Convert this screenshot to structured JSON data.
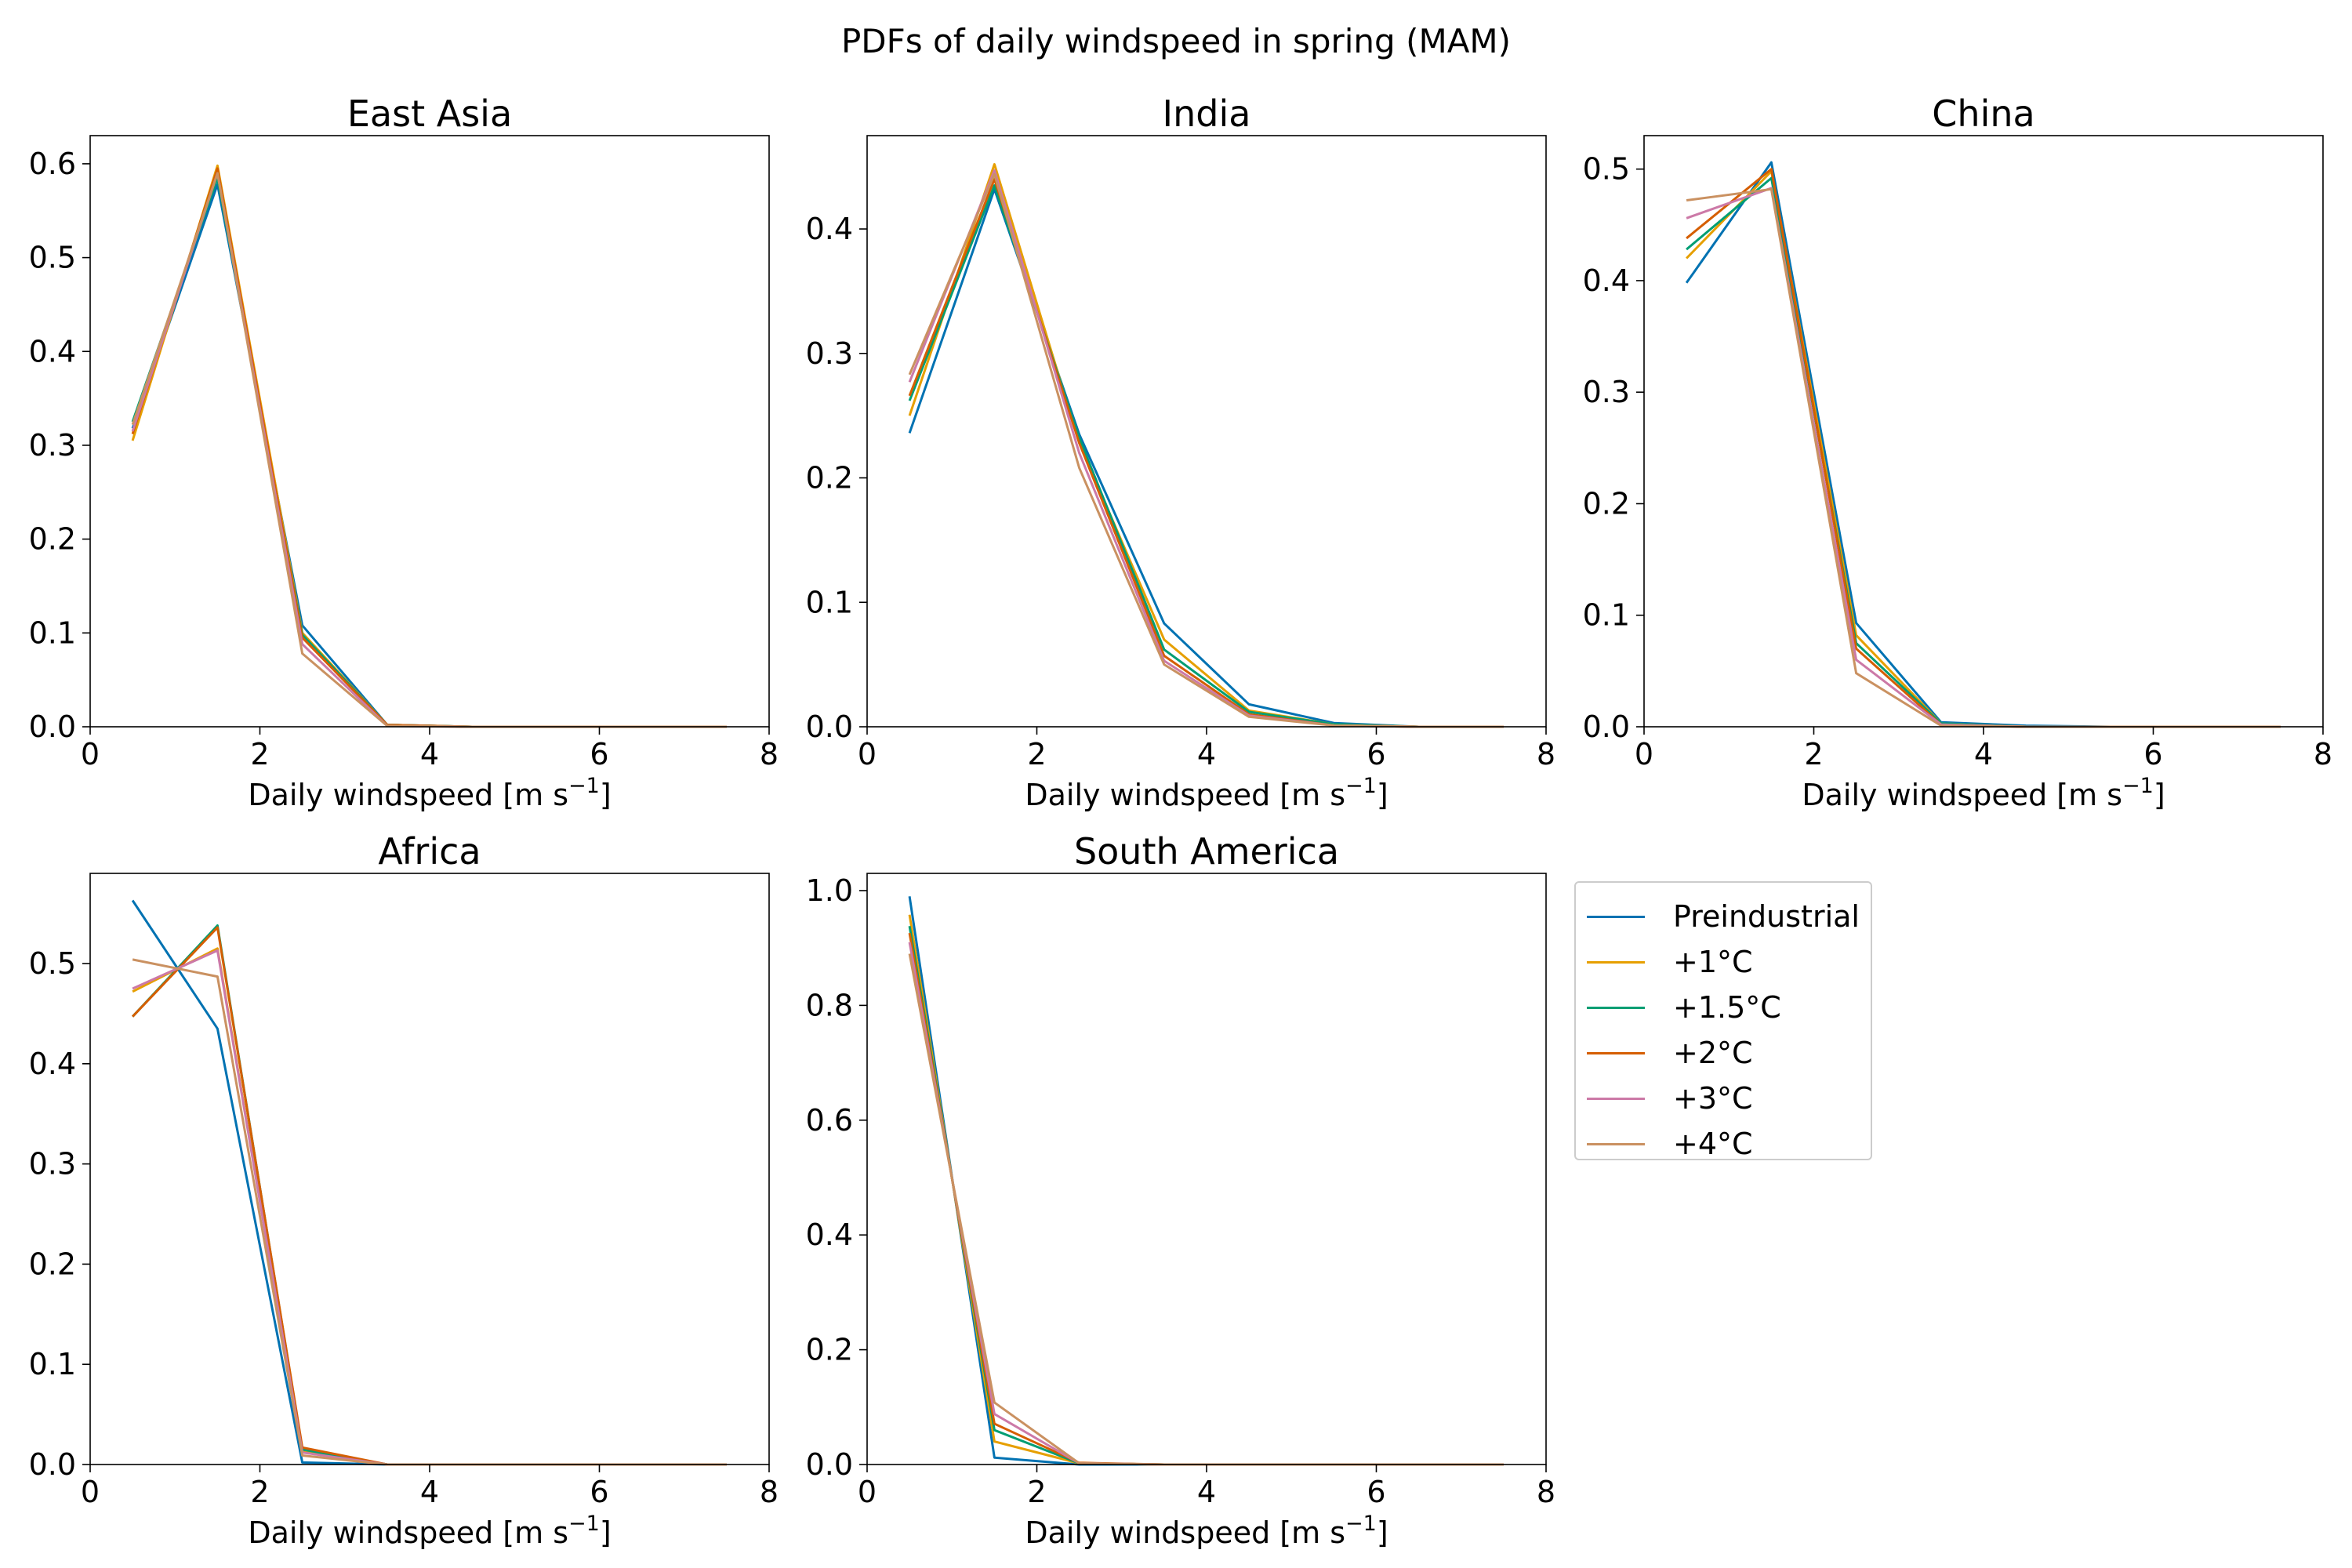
{
  "title": "PDFs of daily windspeed in spring (MAM)",
  "colors": {
    "Preindustrial": "#0072b2",
    "+1°C": "#e69f00",
    "+1.5°C": "#009e73",
    "+2°C": "#d55e00",
    "+3°C": "#cc79a7",
    "+4°C": "#ca9161"
  },
  "legend": {
    "entries": [
      "Preindustrial",
      "+1°C",
      "+1.5°C",
      "+2°C",
      "+3°C",
      "+4°C"
    ]
  },
  "chart_data": [
    {
      "type": "line",
      "title": "East Asia",
      "xlabel": "Daily windspeed [m s⁻¹]",
      "ylabel": "",
      "xlim": [
        0,
        8
      ],
      "ylim": [
        0,
        0.63
      ],
      "xticks": [
        0,
        2,
        4,
        6,
        8
      ],
      "yticks": [
        0.0,
        0.1,
        0.2,
        0.3,
        0.4,
        0.5,
        0.6
      ],
      "x": [
        0.5,
        1.5,
        2.5,
        3.5,
        4.5,
        5.5,
        6.5,
        7.5
      ],
      "series": [
        {
          "name": "Preindustrial",
          "values": [
            0.318,
            0.578,
            0.108,
            0.002,
            0.0,
            0.0,
            0.0,
            0.0
          ]
        },
        {
          "name": "+1°C",
          "values": [
            0.305,
            0.598,
            0.1,
            0.002,
            0.0,
            0.0,
            0.0,
            0.0
          ]
        },
        {
          "name": "+1.5°C",
          "values": [
            0.325,
            0.585,
            0.098,
            0.002,
            0.0,
            0.0,
            0.0,
            0.0
          ]
        },
        {
          "name": "+2°C",
          "values": [
            0.312,
            0.595,
            0.095,
            0.002,
            0.0,
            0.0,
            0.0,
            0.0
          ]
        },
        {
          "name": "+3°C",
          "values": [
            0.315,
            0.59,
            0.088,
            0.001,
            0.0,
            0.0,
            0.0,
            0.0
          ]
        },
        {
          "name": "+4°C",
          "values": [
            0.322,
            0.59,
            0.078,
            0.001,
            0.0,
            0.0,
            0.0,
            0.0
          ]
        }
      ]
    },
    {
      "type": "line",
      "title": "India",
      "xlabel": "Daily windspeed [m s⁻¹]",
      "ylabel": "",
      "xlim": [
        0,
        8
      ],
      "ylim": [
        0,
        0.475
      ],
      "xticks": [
        0,
        2,
        4,
        6,
        8
      ],
      "yticks": [
        0.0,
        0.1,
        0.2,
        0.3,
        0.4
      ],
      "x": [
        0.5,
        1.5,
        2.5,
        3.5,
        4.5,
        5.5,
        6.5,
        7.5
      ],
      "series": [
        {
          "name": "Preindustrial",
          "values": [
            0.236,
            0.432,
            0.235,
            0.083,
            0.018,
            0.003,
            0.0,
            0.0
          ]
        },
        {
          "name": "+1°C",
          "values": [
            0.25,
            0.452,
            0.228,
            0.07,
            0.013,
            0.002,
            0.0,
            0.0
          ]
        },
        {
          "name": "+1.5°C",
          "values": [
            0.262,
            0.435,
            0.232,
            0.062,
            0.012,
            0.002,
            0.0,
            0.0
          ]
        },
        {
          "name": "+2°C",
          "values": [
            0.266,
            0.44,
            0.228,
            0.057,
            0.01,
            0.001,
            0.0,
            0.0
          ]
        },
        {
          "name": "+3°C",
          "values": [
            0.277,
            0.447,
            0.22,
            0.053,
            0.009,
            0.001,
            0.0,
            0.0
          ]
        },
        {
          "name": "+4°C",
          "values": [
            0.283,
            0.444,
            0.208,
            0.05,
            0.008,
            0.001,
            0.0,
            0.0
          ]
        }
      ]
    },
    {
      "type": "line",
      "title": "China",
      "xlabel": "Daily windspeed [m s⁻¹]",
      "ylabel": "",
      "xlim": [
        0,
        8
      ],
      "ylim": [
        0,
        0.53
      ],
      "xticks": [
        0,
        2,
        4,
        6,
        8
      ],
      "yticks": [
        0.0,
        0.1,
        0.2,
        0.3,
        0.4,
        0.5
      ],
      "x": [
        0.5,
        1.5,
        2.5,
        3.5,
        4.5,
        5.5,
        6.5,
        7.5
      ],
      "series": [
        {
          "name": "Preindustrial",
          "values": [
            0.398,
            0.506,
            0.093,
            0.004,
            0.001,
            0.0,
            0.0,
            0.0
          ]
        },
        {
          "name": "+1°C",
          "values": [
            0.42,
            0.498,
            0.082,
            0.003,
            0.0,
            0.0,
            0.0,
            0.0
          ]
        },
        {
          "name": "+1.5°C",
          "values": [
            0.428,
            0.492,
            0.075,
            0.003,
            0.0,
            0.0,
            0.0,
            0.0
          ]
        },
        {
          "name": "+2°C",
          "values": [
            0.438,
            0.5,
            0.07,
            0.002,
            0.0,
            0.0,
            0.0,
            0.0
          ]
        },
        {
          "name": "+3°C",
          "values": [
            0.456,
            0.483,
            0.06,
            0.002,
            0.0,
            0.0,
            0.0,
            0.0
          ]
        },
        {
          "name": "+4°C",
          "values": [
            0.472,
            0.482,
            0.048,
            0.001,
            0.0,
            0.0,
            0.0,
            0.0
          ]
        }
      ]
    },
    {
      "type": "line",
      "title": "Africa",
      "xlabel": "Daily windspeed [m s⁻¹]",
      "ylabel": "",
      "xlim": [
        0,
        8
      ],
      "ylim": [
        0,
        0.59
      ],
      "xticks": [
        0,
        2,
        4,
        6,
        8
      ],
      "yticks": [
        0.0,
        0.1,
        0.2,
        0.3,
        0.4,
        0.5
      ],
      "x": [
        0.5,
        1.5,
        2.5,
        3.5,
        4.5,
        5.5,
        6.5,
        7.5
      ],
      "series": [
        {
          "name": "Preindustrial",
          "values": [
            0.563,
            0.435,
            0.002,
            0.0,
            0.0,
            0.0,
            0.0,
            0.0
          ]
        },
        {
          "name": "+1°C",
          "values": [
            0.472,
            0.515,
            0.013,
            0.0,
            0.0,
            0.0,
            0.0,
            0.0
          ]
        },
        {
          "name": "+1.5°C",
          "values": [
            0.447,
            0.538,
            0.015,
            0.0,
            0.0,
            0.0,
            0.0,
            0.0
          ]
        },
        {
          "name": "+2°C",
          "values": [
            0.447,
            0.536,
            0.017,
            0.0,
            0.0,
            0.0,
            0.0,
            0.0
          ]
        },
        {
          "name": "+3°C",
          "values": [
            0.475,
            0.513,
            0.012,
            0.0,
            0.0,
            0.0,
            0.0,
            0.0
          ]
        },
        {
          "name": "+4°C",
          "values": [
            0.504,
            0.487,
            0.009,
            0.0,
            0.0,
            0.0,
            0.0,
            0.0
          ]
        }
      ]
    },
    {
      "type": "line",
      "title": "South America",
      "xlabel": "Daily windspeed [m s⁻¹]",
      "ylabel": "",
      "xlim": [
        0,
        8
      ],
      "ylim": [
        0,
        1.03
      ],
      "xticks": [
        0,
        2,
        4,
        6,
        8
      ],
      "yticks": [
        0.0,
        0.2,
        0.4,
        0.6,
        0.8,
        1.0
      ],
      "x": [
        0.5,
        1.5,
        2.5,
        3.5,
        4.5,
        5.5,
        6.5,
        7.5
      ],
      "series": [
        {
          "name": "Preindustrial",
          "values": [
            0.99,
            0.012,
            0.0,
            0.0,
            0.0,
            0.0,
            0.0,
            0.0
          ]
        },
        {
          "name": "+1°C",
          "values": [
            0.958,
            0.04,
            0.002,
            0.0,
            0.0,
            0.0,
            0.0,
            0.0
          ]
        },
        {
          "name": "+1.5°C",
          "values": [
            0.938,
            0.06,
            0.002,
            0.0,
            0.0,
            0.0,
            0.0,
            0.0
          ]
        },
        {
          "name": "+2°C",
          "values": [
            0.926,
            0.071,
            0.003,
            0.0,
            0.0,
            0.0,
            0.0,
            0.0
          ]
        },
        {
          "name": "+3°C",
          "values": [
            0.91,
            0.088,
            0.002,
            0.0,
            0.0,
            0.0,
            0.0,
            0.0
          ]
        },
        {
          "name": "+4°C",
          "values": [
            0.89,
            0.108,
            0.002,
            0.0,
            0.0,
            0.0,
            0.0,
            0.0
          ]
        }
      ]
    }
  ]
}
